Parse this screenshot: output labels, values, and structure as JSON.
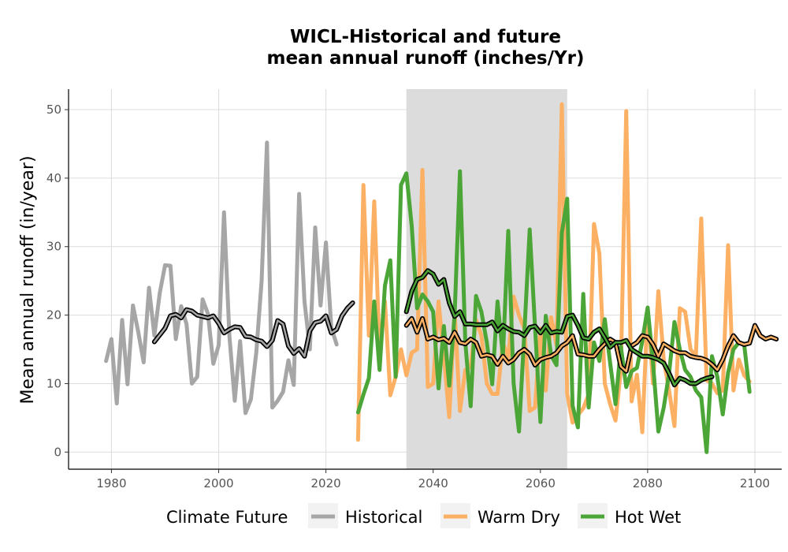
{
  "chart_data": {
    "type": "line",
    "title": "WICL-Historical and future",
    "subtitle": "mean annual runoff (inches/Yr)",
    "xlabel": "",
    "ylabel": "Mean annual runoff (in/year)",
    "xlim": [
      1972,
      2105
    ],
    "ylim": [
      -2.5,
      53
    ],
    "x_ticks": [
      1980,
      2000,
      2020,
      2040,
      2060,
      2080,
      2100
    ],
    "y_ticks": [
      0,
      10,
      20,
      30,
      40,
      50
    ],
    "grid": true,
    "legend_title": "Climate Future",
    "legend_position": "bottom",
    "shaded_period": [
      2035,
      2065
    ],
    "colors": {
      "Historical": "#a6a6a6",
      "Warm Dry": "#fbb064",
      "Hot Wet": "#4ca637",
      "shade": "#dcdcdc",
      "smooth": "#000000"
    },
    "series": [
      {
        "name": "Historical",
        "x_start": 1979,
        "values": [
          13.3,
          16.5,
          7.1,
          19.3,
          9.9,
          21.4,
          17.5,
          13.1,
          24.0,
          17.0,
          23.2,
          27.3,
          27.2,
          16.5,
          21.3,
          18.7,
          10.0,
          11.0,
          22.3,
          20.2,
          12.9,
          15.6,
          35.0,
          17.0,
          7.5,
          16.2,
          5.7,
          7.7,
          14.5,
          25.0,
          45.2,
          6.5,
          7.5,
          8.8,
          13.4,
          9.8,
          37.7,
          22.0,
          15.0,
          32.8,
          21.4,
          30.6,
          18.2,
          15.7
        ]
      },
      {
        "name": "Warm Dry",
        "x_start": 2026,
        "values": [
          1.8,
          39.0,
          17.0,
          36.6,
          14.7,
          22.0,
          8.3,
          11.0,
          15.0,
          11.2,
          14.5,
          15.0,
          41.2,
          9.5,
          10.0,
          22.0,
          14.0,
          5.1,
          20.7,
          6.0,
          12.0,
          12.5,
          19.3,
          17.0,
          10.0,
          8.5,
          8.5,
          16.0,
          13.7,
          22.7,
          20.0,
          18.0,
          6.0,
          6.5,
          18.0,
          9.0,
          19.7,
          15.6,
          50.8,
          8.5,
          4.3,
          5.4,
          6.4,
          8.4,
          33.3,
          29.0,
          10.0,
          7.0,
          4.6,
          12.0,
          49.8,
          7.4,
          11.3,
          2.9,
          21.0,
          10.0,
          23.5,
          13.5,
          9.0,
          3.8,
          21.0,
          20.5,
          15.0,
          14.0,
          34.1,
          10.5,
          10.0,
          8.6,
          9.0,
          30.2,
          9.0,
          13.5,
          11.2,
          10.3
        ]
      },
      {
        "name": "Hot Wet",
        "x_start": 2026,
        "values": [
          5.8,
          8.4,
          10.8,
          22.0,
          12.0,
          24.3,
          28.0,
          11.0,
          39.0,
          40.7,
          33.0,
          21.0,
          23.0,
          22.0,
          20.5,
          9.3,
          18.4,
          9.7,
          19.9,
          41.0,
          16.0,
          6.7,
          22.8,
          20.5,
          16.0,
          9.9,
          22.0,
          14.0,
          32.3,
          10.0,
          3.0,
          17.4,
          32.5,
          18.2,
          4.4,
          19.9,
          14.1,
          12.7,
          32.0,
          37.0,
          6.8,
          3.6,
          23.1,
          6.5,
          16.0,
          13.3,
          19.4,
          13.0,
          7.0,
          15.4,
          9.5,
          11.8,
          12.3,
          16.2,
          21.1,
          13.0,
          3.0,
          6.5,
          11.5,
          19.0,
          15.0,
          12.0,
          11.0,
          9.0,
          8.0,
          0.0,
          14.0,
          11.0,
          5.5,
          11.6,
          15.0,
          16.0,
          15.7,
          8.8
        ]
      }
    ],
    "smoothed": [
      {
        "name": "Historical",
        "x_start": 1988,
        "values": [
          16.1,
          17.1,
          18.1,
          19.9,
          20.1,
          19.6,
          20.8,
          20.6,
          20.0,
          19.8,
          19.6,
          19.9,
          18.8,
          17.4,
          17.9,
          18.3,
          18.2,
          16.9,
          16.8,
          16.4,
          16.2,
          15.4,
          16.3,
          19.2,
          18.7,
          15.5,
          14.4,
          15.1,
          14.0,
          17.7,
          18.9,
          19.1,
          19.9,
          17.4,
          17.9,
          19.9,
          21.0,
          21.8
        ]
      },
      {
        "name": "Warm Dry",
        "x_start": 2035,
        "values": [
          18.5,
          19.5,
          17.5,
          19.5,
          16.5,
          16.8,
          16.4,
          16.6,
          16.0,
          17.5,
          16.0,
          15.8,
          16.5,
          16.0,
          14.0,
          14.2,
          14.0,
          12.8,
          14.0,
          13.0,
          13.5,
          14.5,
          15.0,
          14.3,
          12.7,
          13.5,
          13.8,
          14.0,
          14.5,
          15.5,
          16.0,
          17.0,
          14.3,
          14.2,
          14.0,
          14.0,
          15.0,
          15.8,
          16.5,
          16.0,
          12.5,
          11.8,
          15.5,
          16.0,
          17.0,
          16.8,
          15.7,
          14.0,
          15.8,
          15.3,
          14.8,
          14.5,
          14.5,
          14.0,
          13.8,
          13.7,
          13.4,
          12.8,
          12.0,
          13.5,
          15.5,
          17.0,
          16.0,
          15.7,
          15.9,
          18.5,
          17.0,
          16.5,
          16.8,
          16.5
        ]
      },
      {
        "name": "Hot Wet",
        "x_start": 2035,
        "values": [
          20.5,
          23.5,
          25.2,
          25.5,
          26.5,
          26.0,
          24.5,
          25.2,
          21.8,
          19.8,
          20.5,
          18.7,
          18.7,
          18.6,
          18.6,
          18.6,
          19.0,
          17.7,
          18.5,
          18.0,
          17.6,
          17.5,
          17.0,
          18.2,
          18.4,
          17.4,
          18.5,
          17.4,
          17.6,
          17.5,
          19.8,
          20.0,
          18.5,
          16.7,
          16.5,
          17.5,
          18.0,
          16.7,
          15.3,
          16.0,
          16.0,
          16.3,
          15.0,
          14.5,
          14.0,
          14.0,
          13.8,
          13.5,
          13.0,
          11.5,
          9.8,
          10.8,
          10.5,
          10.0,
          10.0,
          10.5,
          10.8,
          11.0
        ]
      }
    ]
  }
}
